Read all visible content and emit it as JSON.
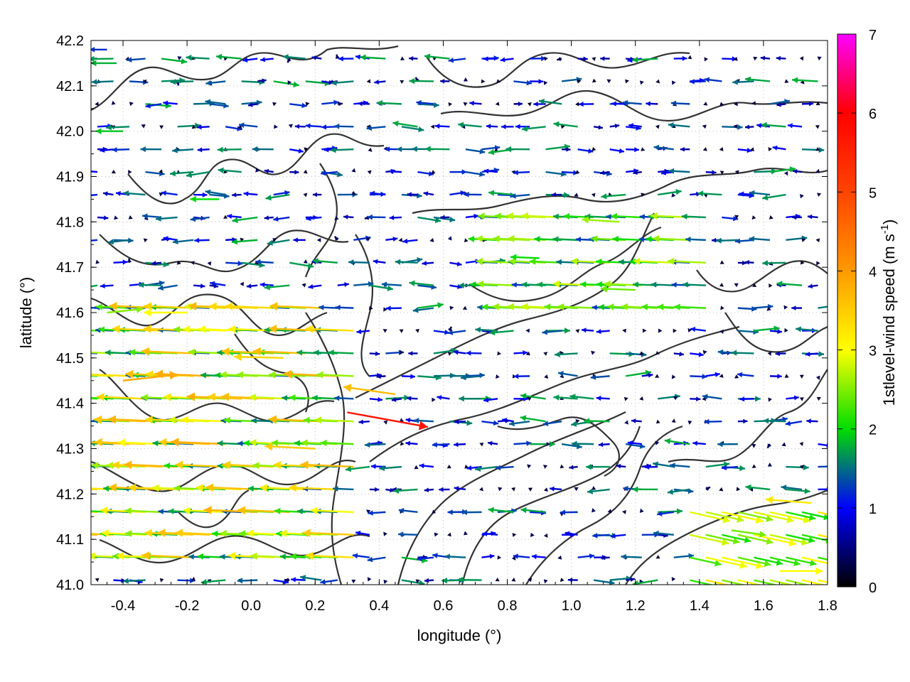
{
  "chart_data": {
    "type": "quiver",
    "title": "",
    "xlabel": "longitude (°)",
    "ylabel": "latitude (°)",
    "colorbar_label": "1stlevel-wind speed (m s",
    "colorbar_label_sup": "-1",
    "colorbar_label_end": ")",
    "xlim": [
      -0.5,
      1.8
    ],
    "ylim": [
      41.0,
      42.2
    ],
    "x_ticks": [
      "-0.4",
      "-0.2",
      "0.0",
      "0.2",
      "0.4",
      "0.6",
      "0.8",
      "1.0",
      "1.2",
      "1.4",
      "1.6",
      "1.8"
    ],
    "y_ticks": [
      "41.0",
      "41.1",
      "41.2",
      "41.3",
      "41.4",
      "41.5",
      "41.6",
      "41.7",
      "41.8",
      "41.9",
      "42.0",
      "42.1",
      "42.2"
    ],
    "colorbar": {
      "min": 0,
      "max": 7,
      "ticks": [
        "0",
        "1",
        "2",
        "3",
        "4",
        "5",
        "6",
        "7"
      ],
      "colors": [
        "#000000",
        "#0000ff",
        "#00ff00",
        "#ffff00",
        "#ff8000",
        "#ff0000",
        "#ff00ff"
      ]
    },
    "grid": true,
    "contours": "orography isolines (dark grey)",
    "vectors": [
      {
        "x": -0.45,
        "y": 42.18,
        "u": -1.2,
        "v": 0.0
      },
      {
        "x": -0.42,
        "y": 42.15,
        "u": -1.8,
        "v": 0.0
      },
      {
        "x": -0.4,
        "y": 42.0,
        "u": -1.9,
        "v": 0.0
      },
      {
        "x": -0.45,
        "y": 41.6,
        "u": 2.5,
        "v": 0.3
      },
      {
        "x": -0.4,
        "y": 41.45,
        "u": 3.8,
        "v": 0.5
      },
      {
        "x": -0.2,
        "y": 41.6,
        "u": -3.0,
        "v": 0.0
      },
      {
        "x": -0.1,
        "y": 41.85,
        "u": -2.0,
        "v": 0.0
      },
      {
        "x": 0.1,
        "y": 41.5,
        "u": -3.4,
        "v": 0.1
      },
      {
        "x": 0.3,
        "y": 41.38,
        "u": 5.6,
        "v": -1.2
      },
      {
        "x": 0.2,
        "y": 41.3,
        "u": -3.5,
        "v": 0.2
      },
      {
        "x": 0.45,
        "y": 41.42,
        "u": -3.6,
        "v": 0.6
      },
      {
        "x": 0.9,
        "y": 41.72,
        "u": -2.0,
        "v": 0.1
      },
      {
        "x": 1.15,
        "y": 41.8,
        "u": -2.6,
        "v": 0.2
      },
      {
        "x": 1.2,
        "y": 41.65,
        "u": -2.4,
        "v": 0.1
      },
      {
        "x": 1.5,
        "y": 41.12,
        "u": 2.4,
        "v": -0.4
      },
      {
        "x": 1.65,
        "y": 41.03,
        "u": 3.0,
        "v": 0.0
      },
      {
        "x": 1.75,
        "y": 41.18,
        "u": -3.2,
        "v": 0.3
      }
    ]
  }
}
